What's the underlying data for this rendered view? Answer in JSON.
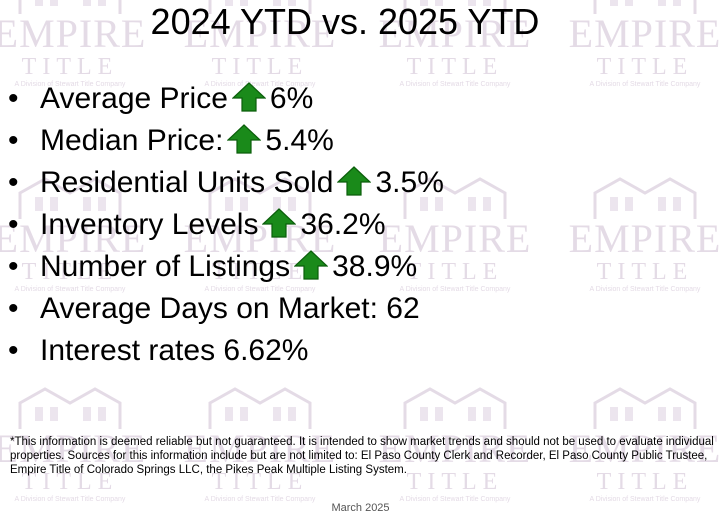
{
  "watermark": {
    "brand": "EMPIRE",
    "sub": "TITLE",
    "division": "A Division of Stewart Title Company"
  },
  "title": "2024 YTD vs. 2025 YTD",
  "bullets": [
    {
      "label": "Average Price",
      "value": "6%"
    },
    {
      "label": "Median Price:",
      "value": "5.4%"
    },
    {
      "label": "Residential Units Sold",
      "value": "3.5%"
    },
    {
      "label": "Inventory Levels",
      "value": "36.2%"
    },
    {
      "label": "Number of Listings",
      "value": "38.9%"
    },
    {
      "label": "Average Days on Market: 62"
    },
    {
      "label": "Interest rates 6.62%"
    }
  ],
  "footnote": "*This information is deemed reliable but not guaranteed.  It is intended to show market trends and should not be used to evaluate individual properties.  Sources for this information include but are not limited to: El Paso County Clerk and Recorder, El Paso County Public Trustee, Empire Title of Colorado Springs LLC, the Pikes Peak Multiple Listing System.",
  "footer": "March 2025"
}
